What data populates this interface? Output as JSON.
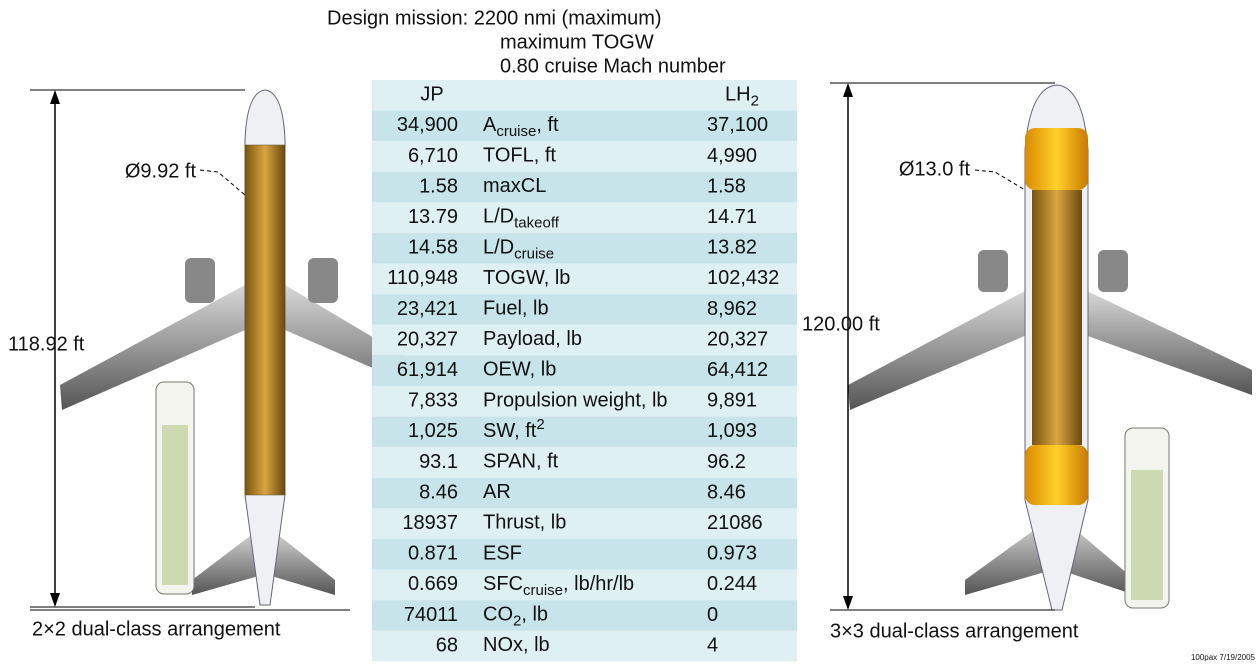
{
  "header": {
    "line1": "Design mission: 2200 nmi (maximum)",
    "line2": "maximum TOGW",
    "line3": "0.80 cruise Mach number"
  },
  "left": {
    "diameter": "Ø9.92 ft",
    "length": "118.92 ft",
    "arrangement": "2×2 dual-class arrangement"
  },
  "right": {
    "diameter": "Ø13.0 ft",
    "length": "120.00 ft",
    "arrangement": "3×3 dual-class arrangement"
  },
  "table": {
    "header": {
      "jp": "JP",
      "lh2": {
        "text": "LH",
        "sub": "2"
      }
    },
    "rows": [
      {
        "jp": "34,900",
        "param": {
          "text": "A",
          "sub": "cruise",
          "after": ", ft"
        },
        "lh2": "37,100"
      },
      {
        "jp": "6,710",
        "param": {
          "text": "TOFL, ft"
        },
        "lh2": "4,990"
      },
      {
        "jp": "1.58",
        "param": {
          "text": "maxCL"
        },
        "lh2": "1.58"
      },
      {
        "jp": "13.79",
        "param": {
          "text": "L/D",
          "sub": "takeoff"
        },
        "lh2": "14.71"
      },
      {
        "jp": "14.58",
        "param": {
          "text": "L/D",
          "sub": "cruise"
        },
        "lh2": "13.82"
      },
      {
        "jp": "110,948",
        "param": {
          "text": "TOGW, lb"
        },
        "lh2": "102,432"
      },
      {
        "jp": "23,421",
        "param": {
          "text": "Fuel, lb"
        },
        "lh2": "8,962"
      },
      {
        "jp": "20,327",
        "param": {
          "text": "Payload, lb"
        },
        "lh2": "20,327"
      },
      {
        "jp": "61,914",
        "param": {
          "text": "OEW, lb"
        },
        "lh2": "64,412"
      },
      {
        "jp": "7,833",
        "param": {
          "text": "Propulsion weight, lb"
        },
        "lh2": "9,891"
      },
      {
        "jp": "1,025",
        "param": {
          "text": "SW, ft",
          "sup": "2"
        },
        "lh2": "1,093"
      },
      {
        "jp": "93.1",
        "param": {
          "text": "SPAN, ft"
        },
        "lh2": "96.2"
      },
      {
        "jp": "8.46",
        "param": {
          "text": "AR"
        },
        "lh2": "8.46"
      },
      {
        "jp": "18937",
        "param": {
          "text": "Thrust, lb"
        },
        "lh2": "21086"
      },
      {
        "jp": "0.871",
        "param": {
          "text": "ESF"
        },
        "lh2": "0.973"
      },
      {
        "jp": "0.669",
        "param": {
          "text": "SFC",
          "sub": "cruise",
          "after": ", lb/hr/lb"
        },
        "lh2": "0.244"
      },
      {
        "jp": "74011",
        "param": {
          "text": "CO",
          "sub": "2",
          "after": ", lb"
        },
        "lh2": "0"
      },
      {
        "jp": "68",
        "param": {
          "text": "NOx, lb"
        },
        "lh2": "4"
      }
    ]
  },
  "footnote": "100pax 7/19/2005"
}
